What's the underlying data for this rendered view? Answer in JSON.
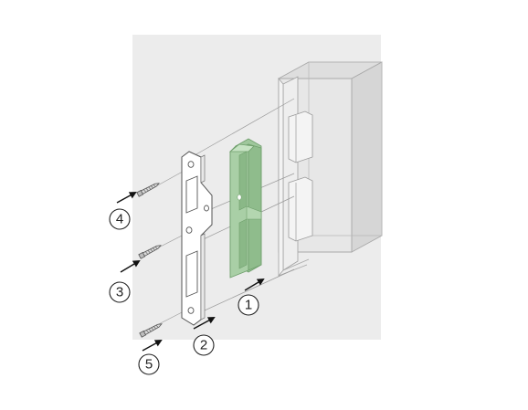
{
  "diagram": {
    "callouts": [
      {
        "label": "①"
      },
      {
        "label": "②"
      },
      {
        "label": "③"
      },
      {
        "label": "④"
      },
      {
        "label": "⑤"
      }
    ],
    "colors": {
      "background_panel": "#ececec",
      "box_face": "#e2e2e2",
      "insert_green": "#a9cfa6",
      "insert_green_dark": "#7fae7c",
      "plate": "#ffffff",
      "leader": "#111111"
    }
  }
}
